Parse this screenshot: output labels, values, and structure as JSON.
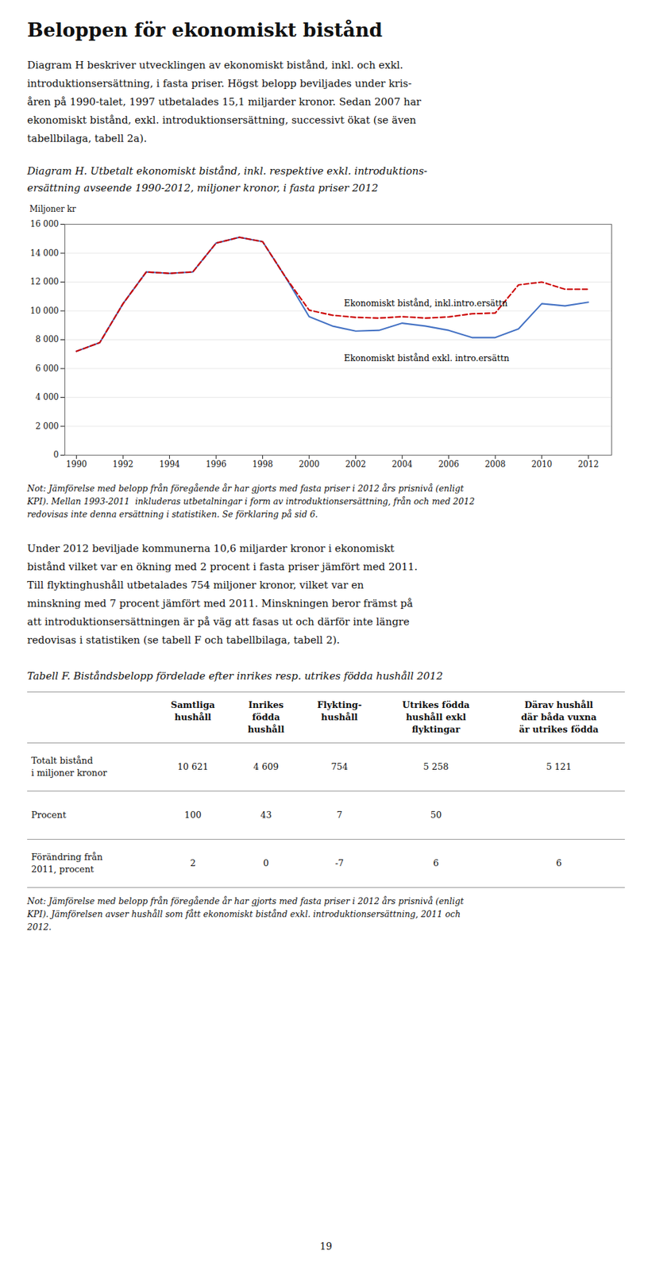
{
  "page_title": "Beloppen för ekonomiskt bistånd",
  "intro_lines": [
    "Diagram H beskriver utvecklingen av ekonomiskt bistånd, inkl. och exkl.",
    "introduktionsersättning, i fasta priser. Högst belopp beviljades under kris-",
    "åren på 1990-talet, 1997 utbetalades 15,1 miljarder kronor. Sedan 2007 har",
    "ekonomiskt bistånd, exkl. introduktionsersättning, successivt ökat (se även",
    "tabellbilaga, tabell 2a)."
  ],
  "caption_lines": [
    "Diagram H. Utbetalt ekonomiskt bistånd, inkl. respektive exkl. introduktions-",
    "ersättning avseende 1990-2012, miljoner kronor, i fasta priser 2012"
  ],
  "chart_data": {
    "type": "line",
    "ylabel": "Miljoner kr",
    "x": [
      1990,
      1991,
      1992,
      1993,
      1994,
      1995,
      1996,
      1997,
      1998,
      1999,
      2000,
      2001,
      2002,
      2003,
      2004,
      2005,
      2006,
      2007,
      2008,
      2009,
      2010,
      2011,
      2012
    ],
    "series": [
      {
        "name": "Ekonomiskt bistånd exkl. intro.ersättn",
        "color": "#4472c4",
        "line_style": "solid",
        "values": [
          7200,
          7800,
          10500,
          12700,
          12600,
          12700,
          14700,
          15100,
          14800,
          12300,
          9600,
          8950,
          8600,
          8650,
          9150,
          8950,
          8650,
          8150,
          8150,
          8750,
          10500,
          10350,
          10600
        ]
      },
      {
        "name": "Ekonomiskt bistånd, inkl.intro.ersättn",
        "color": "#cc0000",
        "line_style": "dashed",
        "values": [
          7200,
          7800,
          10500,
          12700,
          12600,
          12700,
          14700,
          15100,
          14800,
          12300,
          10050,
          9700,
          9550,
          9500,
          9600,
          9500,
          9580,
          9800,
          9850,
          11800,
          12000,
          11500,
          11500
        ]
      }
    ],
    "annotations": [
      {
        "text": "Ekonomiskt bistånd, inkl.intro.ersättn",
        "x": 2001.5,
        "y": 10350
      },
      {
        "text": "Ekonomiskt bistånd exkl. intro.ersättn",
        "x": 2001.5,
        "y": 6500
      }
    ],
    "xlim": [
      1989.5,
      2013
    ],
    "xticks": [
      1990,
      1992,
      1994,
      1996,
      1998,
      2000,
      2002,
      2004,
      2006,
      2008,
      2010,
      2012
    ],
    "ylim": [
      0,
      16000
    ],
    "yticks": [
      0,
      {
        "value": 2000,
        "label": "2 000"
      },
      {
        "value": 4000,
        "label": "4 000"
      },
      {
        "value": 6000,
        "label": "6 000"
      },
      {
        "value": 8000,
        "label": "8 000"
      },
      {
        "value": 10000,
        "label": "10 000"
      },
      {
        "value": 12000,
        "label": "12 000"
      },
      {
        "value": 14000,
        "label": "14 000"
      },
      {
        "value": 16000,
        "label": "16 000"
      }
    ],
    "grid": "y"
  },
  "note_lines": [
    "Not: Jämförelse med belopp från föregående år har gjorts med fasta priser i 2012 års prisnivå (enligt",
    "KPI). Mellan 1993-2011  inkluderas utbetalningar i form av introduktionsersättning, från och med 2012",
    "redovisas inte denna ersättning i statistiken. Se förklaring på sid 6."
  ],
  "para_lines": [
    "Under 2012 beviljade kommunerna 10,6 miljarder kronor i ekonomiskt",
    "bistånd vilket var en ökning med 2 procent i fasta priser jämfört med 2011.",
    "Till flyktinghushåll utbetalades 754 miljoner kronor, vilket var en",
    "minskning med 7 procent jämfört med 2011. Minskningen beror främst på",
    "att introduktionsersättningen är på väg att fasas ut och därför inte längre",
    "redovisas i statistiken (se tabell F och tabellbilaga, tabell 2)."
  ],
  "table_caption": "Tabell F. Biståndsbelopp fördelade efter inrikes resp. utrikes födda hushåll 2012",
  "table": {
    "column_headers": [
      [
        "Samtliga",
        "hushåll"
      ],
      [
        "Inrikes",
        "födda",
        "hushåll"
      ],
      [
        "Flykting-",
        "hushåll"
      ],
      [
        "Utrikes födda",
        "hushåll exkl",
        "flyktingar"
      ],
      [
        "Därav hushåll",
        "där båda vuxna",
        "är utrikes födda"
      ]
    ],
    "rows": [
      {
        "label_lines": [
          "Totalt bistånd",
          "i miljoner kronor"
        ],
        "values": [
          "10 621",
          "4 609",
          "754",
          "5 258",
          "5 121"
        ]
      },
      {
        "label_lines": [
          "Procent"
        ],
        "values": [
          "100",
          "43",
          "7",
          "50",
          null
        ]
      },
      {
        "label_lines": [
          "Förändring från",
          "2011, procent"
        ],
        "values": [
          "2",
          "0",
          "-7",
          "6",
          "6"
        ]
      }
    ]
  },
  "table_note_lines": [
    "Not: Jämförelse med belopp från föregående år har gjorts med fasta priser i 2012 års prisnivå (enligt",
    "KPI). Jämförelsen avser hushåll som fått ekonomiskt bistånd exkl. introduktionsersättning, 2011 och",
    "2012."
  ],
  "page_number": "19"
}
